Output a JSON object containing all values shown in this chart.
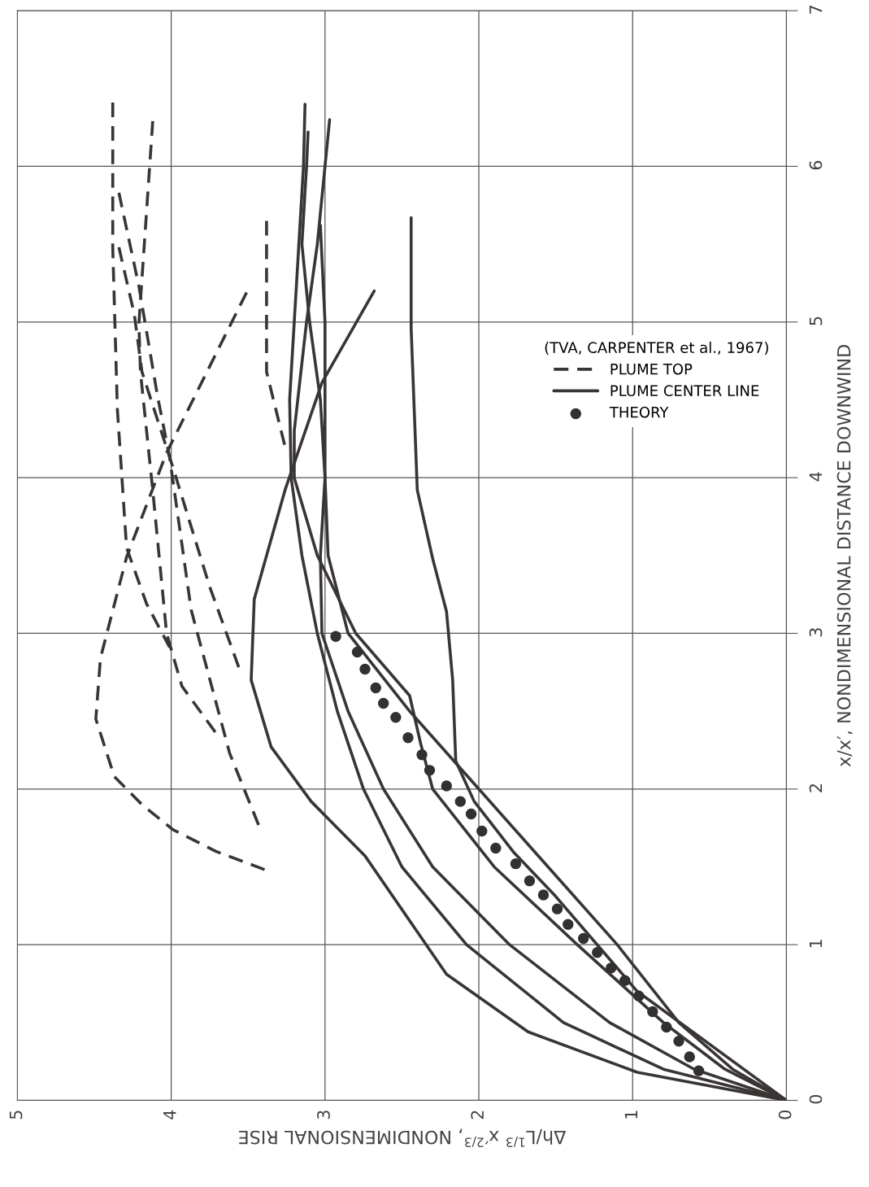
{
  "chart_data": {
    "type": "line",
    "xlabel": "Δh/L$^{1/3}$ x′$^{2/3}$, NONDIMENSIONAL RISE",
    "ylabel": "x/x′, NONDIMENSIONAL DISTANCE DOWNWIND",
    "legend_title": "(TVA, CARPENTER et al., 1967)",
    "xlim": [
      5,
      0
    ],
    "ylim": [
      0,
      7
    ],
    "xticks": [
      0,
      1,
      2,
      3,
      4,
      5
    ],
    "yticks": [
      0,
      1,
      2,
      3,
      4,
      5,
      6,
      7
    ],
    "grid": true,
    "legend": "right",
    "series": [
      {
        "name": "PLUME TOP",
        "color": "#3a3535",
        "line_style": "dashed",
        "values": [
          6.41,
          5.48,
          4.44,
          3.55,
          3.19,
          2.91
        ],
        "x": [
          4.38,
          4.38,
          4.35,
          4.29,
          4.16,
          4.01
        ]
      },
      {
        "color": "#3a3535",
        "line_style": "dashed",
        "values": [
          6.29,
          4.99,
          4.68,
          3.92,
          3.0,
          2.66,
          2.32
        ],
        "x": [
          4.12,
          4.21,
          4.2,
          4.12,
          4.03,
          3.93,
          3.68
        ]
      },
      {
        "color": "#3a3535",
        "line_style": "dashed",
        "values": [
          5.83,
          5.23,
          4.53,
          4.13,
          3.15,
          2.23,
          1.74
        ],
        "x": [
          4.34,
          4.21,
          4.09,
          4.01,
          3.87,
          3.62,
          3.42
        ]
      },
      {
        "color": "#3a3535",
        "line_style": "dashed",
        "values": [
          5.48,
          5.05,
          4.68,
          4.07,
          3.3,
          2.78
        ],
        "x": [
          4.34,
          4.24,
          4.19,
          3.99,
          3.75,
          3.56
        ]
      },
      {
        "color": "#3a3535",
        "line_style": "dashed",
        "values": [
          5.19,
          4.16,
          3.49,
          2.84,
          2.45,
          2.08,
          1.9,
          1.74,
          1.6,
          1.47
        ],
        "x": [
          3.51,
          4.03,
          4.29,
          4.46,
          4.49,
          4.37,
          4.19,
          3.99,
          3.71,
          3.36
        ]
      },
      {
        "color": "#3a3535",
        "line_style": "dashed",
        "values": [
          5.65,
          4.68,
          4.16
        ],
        "x": [
          3.38,
          3.38,
          3.25
        ]
      },
      {
        "name": "PLUME CENTER LINE",
        "color": "#3a3535",
        "line_style": "solid",
        "values": [
          0,
          0.18,
          0.44,
          0.81,
          1.57,
          1.92,
          2.27,
          2.7,
          3.22,
          3.92,
          4.61,
          5.2
        ],
        "x": [
          0,
          0.97,
          1.68,
          2.21,
          2.74,
          3.09,
          3.35,
          3.48,
          3.46,
          3.26,
          3.02,
          2.68
        ]
      },
      {
        "color": "#3a3535",
        "line_style": "solid",
        "values": [
          0,
          0.7,
          1.31,
          1.59,
          1.92,
          2.18,
          2.7,
          3.14,
          3.48,
          3.92,
          4.96,
          5.67
        ],
        "x": [
          0,
          0.97,
          1.5,
          1.77,
          2.03,
          2.15,
          2.17,
          2.21,
          2.3,
          2.4,
          2.44,
          2.44
        ]
      },
      {
        "color": "#3a3535",
        "line_style": "solid",
        "values": [
          0,
          0.2,
          0.5,
          1,
          1.5,
          2,
          2.5,
          3,
          3.5,
          4,
          4.5,
          5,
          5.5,
          6,
          6.4
        ],
        "x": [
          0,
          0.8,
          1.45,
          2.08,
          2.5,
          2.75,
          2.92,
          3.05,
          3.15,
          3.22,
          3.23,
          3.2,
          3.17,
          3.14,
          3.13
        ]
      },
      {
        "color": "#3a3535",
        "line_style": "solid",
        "values": [
          0,
          0.2,
          0.5,
          1,
          1.5,
          2,
          2.5,
          3,
          3.5,
          4,
          4.5,
          5,
          5.5,
          6,
          6.22
        ],
        "x": [
          0,
          0.6,
          1.15,
          1.8,
          2.3,
          2.62,
          2.85,
          3.02,
          3.03,
          3.0,
          3.03,
          3.1,
          3.15,
          3.12,
          3.11
        ]
      },
      {
        "color": "#3a3535",
        "line_style": "solid",
        "values": [
          0,
          0.2,
          0.5,
          1,
          1.5,
          2,
          2.3,
          2.6,
          3,
          3.5,
          4,
          4.3,
          5,
          5.5,
          6,
          6.3
        ],
        "x": [
          0,
          0.4,
          0.8,
          1.36,
          1.9,
          2.3,
          2.38,
          2.45,
          2.8,
          3.05,
          3.2,
          3.2,
          3.12,
          3.05,
          3.0,
          2.97
        ]
      },
      {
        "color": "#3a3535",
        "line_style": "solid",
        "values": [
          0,
          0.2,
          0.5,
          1,
          1.5,
          2,
          2.5,
          3,
          3.5,
          4,
          4.5,
          5,
          5.62
        ],
        "x": [
          0,
          0.35,
          0.7,
          1.1,
          1.55,
          2.0,
          2.45,
          2.85,
          2.98,
          3.0,
          3.0,
          3.0,
          3.03
        ]
      },
      {
        "name": "THEORY",
        "type": "scatter",
        "marker": "circle",
        "color": "#333030",
        "values": [
          0.19,
          0.28,
          0.38,
          0.47,
          0.57,
          0.67,
          0.77,
          0.85,
          0.95,
          1.04,
          1.13,
          1.23,
          1.32,
          1.41,
          1.52,
          1.62,
          1.73,
          1.84,
          1.92,
          2.02,
          2.12,
          2.22,
          2.33,
          2.46,
          2.55,
          2.65,
          2.77,
          2.88,
          2.98
        ],
        "x": [
          0.57,
          0.63,
          0.7,
          0.78,
          0.87,
          0.96,
          1.05,
          1.14,
          1.23,
          1.32,
          1.42,
          1.49,
          1.58,
          1.67,
          1.76,
          1.89,
          1.98,
          2.05,
          2.12,
          2.21,
          2.32,
          2.37,
          2.46,
          2.54,
          2.62,
          2.67,
          2.74,
          2.79,
          2.93
        ]
      }
    ]
  }
}
